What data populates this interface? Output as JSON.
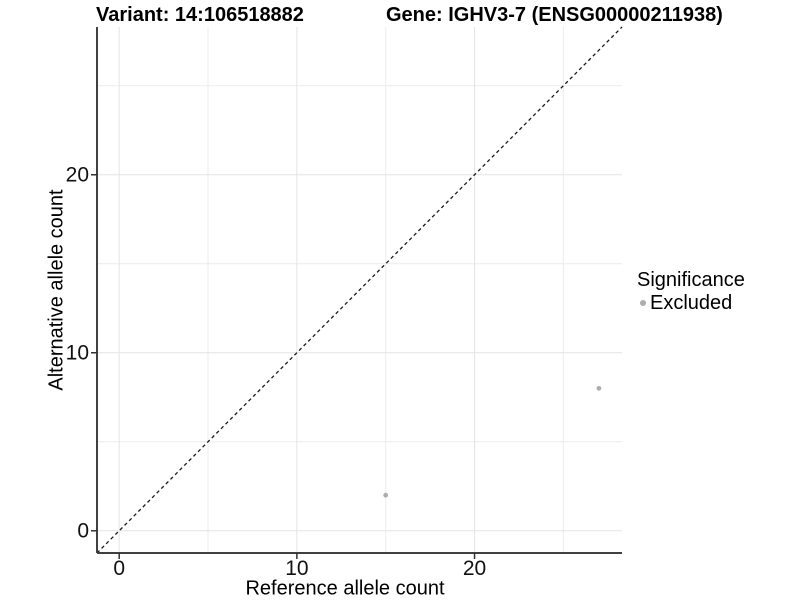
{
  "header": {
    "variant_title": "Variant: 14:106518882",
    "gene_title": "Gene: IGHV3-7 (ENSG00000211938)"
  },
  "chart_data": {
    "type": "scatter",
    "xlabel": "Reference allele count",
    "ylabel": "Alternative allele count",
    "xlim": [
      -1.25,
      28.3
    ],
    "ylim": [
      -1.25,
      28.3
    ],
    "x_major_ticks": [
      0,
      10,
      20
    ],
    "y_major_ticks": [
      0,
      10,
      20
    ],
    "x_minor_gridlines": [
      5,
      15,
      25
    ],
    "y_minor_gridlines": [
      5,
      15,
      25
    ],
    "grid": {
      "major_color": "#e4e4e4",
      "minor_color": "#ececec"
    },
    "axis_color": "#404040",
    "tick_color": "#333333",
    "identity_line": {
      "style": "dashed",
      "from": [
        -1.25,
        -1.25
      ],
      "to": [
        28.3,
        28.3
      ],
      "color": "#1a1a1a"
    },
    "series": [
      {
        "name": "Excluded",
        "color": "#adadad",
        "point_radius": 2.4,
        "points": [
          {
            "x": 15,
            "y": 2
          },
          {
            "x": 27,
            "y": 8
          }
        ]
      }
    ]
  },
  "legend": {
    "title": "Significance",
    "items": [
      {
        "label": "Excluded",
        "color": "#adadad"
      }
    ]
  }
}
